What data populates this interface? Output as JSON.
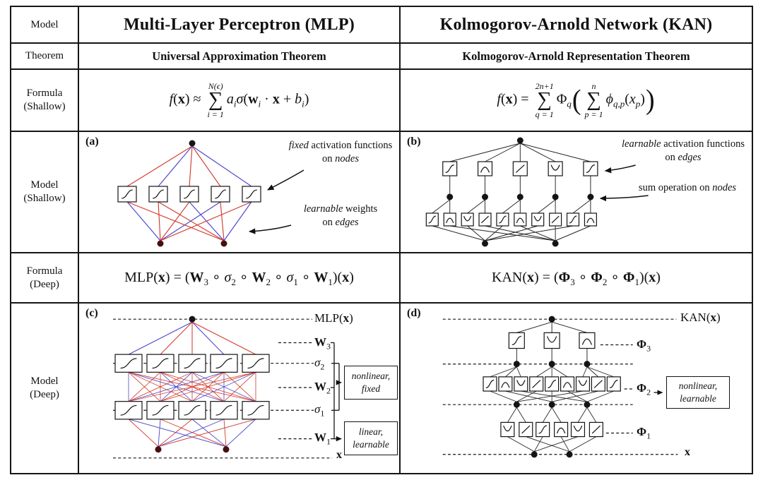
{
  "left_labels": {
    "model": "Model",
    "theorem": "Theorem",
    "formula": "Formula",
    "shallow": "(Shallow)",
    "deep": "(Deep)"
  },
  "headers": {
    "mlp": "Multi-Layer Perceptron (MLP)",
    "kan": "Kolmogorov-Arnold Network (KAN)"
  },
  "theorems": {
    "mlp": "Universal Approximation Theorem",
    "kan": "Kolmogorov-Arnold Representation Theorem"
  },
  "colors": {
    "edge_red": "#d23b2e",
    "edge_blue": "#4b46c8",
    "edge_black": "#222222",
    "node_fill": "#141414",
    "input_node_fill": "#471010"
  },
  "formulas": {
    "mlp_shallow": [
      {
        "k": "i",
        "v": "f"
      },
      {
        "k": "t",
        "v": "("
      },
      {
        "k": "b",
        "v": "x"
      },
      {
        "k": "t",
        "v": ") ≈ "
      },
      {
        "k": "sum",
        "top": "N(ϵ)",
        "bot": "i = 1"
      },
      {
        "k": "i",
        "v": "a"
      },
      {
        "k": "sub",
        "v": "i"
      },
      {
        "k": "i",
        "v": "σ"
      },
      {
        "k": "t",
        "v": "("
      },
      {
        "k": "b",
        "v": "w"
      },
      {
        "k": "sub",
        "v": "i"
      },
      {
        "k": "t",
        "v": " · "
      },
      {
        "k": "b",
        "v": "x"
      },
      {
        "k": "t",
        "v": " + "
      },
      {
        "k": "i",
        "v": "b"
      },
      {
        "k": "sub",
        "v": "i"
      },
      {
        "k": "t",
        "v": ")"
      }
    ],
    "kan_shallow": [
      {
        "k": "i",
        "v": "f"
      },
      {
        "k": "t",
        "v": "("
      },
      {
        "k": "b",
        "v": "x"
      },
      {
        "k": "t",
        "v": ") = "
      },
      {
        "k": "sum",
        "top": "2n+1",
        "bot": "q = 1"
      },
      {
        "k": "t",
        "v": "Φ"
      },
      {
        "k": "sub",
        "v": "q"
      },
      {
        "k": "big",
        "v": "("
      },
      {
        "k": "sum",
        "top": "n",
        "bot": "p = 1"
      },
      {
        "k": "i",
        "v": "ϕ"
      },
      {
        "k": "sub",
        "v": "q,p"
      },
      {
        "k": "t",
        "v": "("
      },
      {
        "k": "i",
        "v": "x"
      },
      {
        "k": "sub",
        "v": "p"
      },
      {
        "k": "t",
        "v": ")"
      },
      {
        "k": "big",
        "v": ")"
      }
    ],
    "mlp_deep": [
      {
        "k": "t",
        "v": "MLP("
      },
      {
        "k": "b",
        "v": "x"
      },
      {
        "k": "t",
        "v": ") = ("
      },
      {
        "k": "b",
        "v": "W"
      },
      {
        "k": "sub",
        "v": "3"
      },
      {
        "k": "t",
        "v": " ∘ "
      },
      {
        "k": "i",
        "v": "σ"
      },
      {
        "k": "sub",
        "v": "2"
      },
      {
        "k": "t",
        "v": " ∘ "
      },
      {
        "k": "b",
        "v": "W"
      },
      {
        "k": "sub",
        "v": "2"
      },
      {
        "k": "t",
        "v": " ∘ "
      },
      {
        "k": "i",
        "v": "σ"
      },
      {
        "k": "sub",
        "v": "1"
      },
      {
        "k": "t",
        "v": " ∘ "
      },
      {
        "k": "b",
        "v": "W"
      },
      {
        "k": "sub",
        "v": "1"
      },
      {
        "k": "t",
        "v": ")("
      },
      {
        "k": "b",
        "v": "x"
      },
      {
        "k": "t",
        "v": ")"
      }
    ],
    "kan_deep": [
      {
        "k": "t",
        "v": "KAN("
      },
      {
        "k": "b",
        "v": "x"
      },
      {
        "k": "t",
        "v": ") = ("
      },
      {
        "k": "b",
        "v": "Φ"
      },
      {
        "k": "sub",
        "v": "3"
      },
      {
        "k": "t",
        "v": " ∘ "
      },
      {
        "k": "b",
        "v": "Φ"
      },
      {
        "k": "sub",
        "v": "2"
      },
      {
        "k": "t",
        "v": " ∘ "
      },
      {
        "k": "b",
        "v": "Φ"
      },
      {
        "k": "sub",
        "v": "1"
      },
      {
        "k": "t",
        "v": ")("
      },
      {
        "k": "b",
        "v": "x"
      },
      {
        "k": "t",
        "v": ")"
      }
    ]
  },
  "diagrams": {
    "a": {
      "tag": "(a)",
      "ann1": {
        "i1": "fixed",
        "t1": " activation functions",
        "t2": "on ",
        "i2": "nodes"
      },
      "ann2": {
        "i1": "learnable",
        "t1": " weights",
        "t2": "on ",
        "i2": "edges"
      }
    },
    "b": {
      "tag": "(b)",
      "ann1": {
        "i1": "learnable",
        "t1": " activation functions",
        "t2": "on ",
        "i2": "edges"
      },
      "ann2": {
        "t1": "sum operation on ",
        "i1": "nodes"
      }
    },
    "c": {
      "tag": "(c)",
      "top": {
        "pre": "MLP(",
        "x": "x",
        "post": ")"
      },
      "labels": {
        "w3": {
          "base": "W",
          "sub": "3"
        },
        "s2": {
          "base": "σ",
          "sub": "2"
        },
        "w2": {
          "base": "W",
          "sub": "2"
        },
        "s1": {
          "base": "σ",
          "sub": "1"
        },
        "w1": {
          "base": "W",
          "sub": "1"
        }
      },
      "box_nf": {
        "l1": "nonlinear,",
        "l2": "fixed"
      },
      "box_ll": {
        "l1": "linear,",
        "l2": "learnable"
      },
      "bottom": "x"
    },
    "d": {
      "tag": "(d)",
      "top": {
        "pre": "KAN(",
        "x": "x",
        "post": ")"
      },
      "labels": {
        "p3": {
          "base": "Φ",
          "sub": "3"
        },
        "p2": {
          "base": "Φ",
          "sub": "2"
        },
        "p1": {
          "base": "Φ",
          "sub": "1"
        }
      },
      "box_nl": {
        "l1": "nonlinear,",
        "l2": "learnable"
      },
      "bottom": "x"
    }
  }
}
